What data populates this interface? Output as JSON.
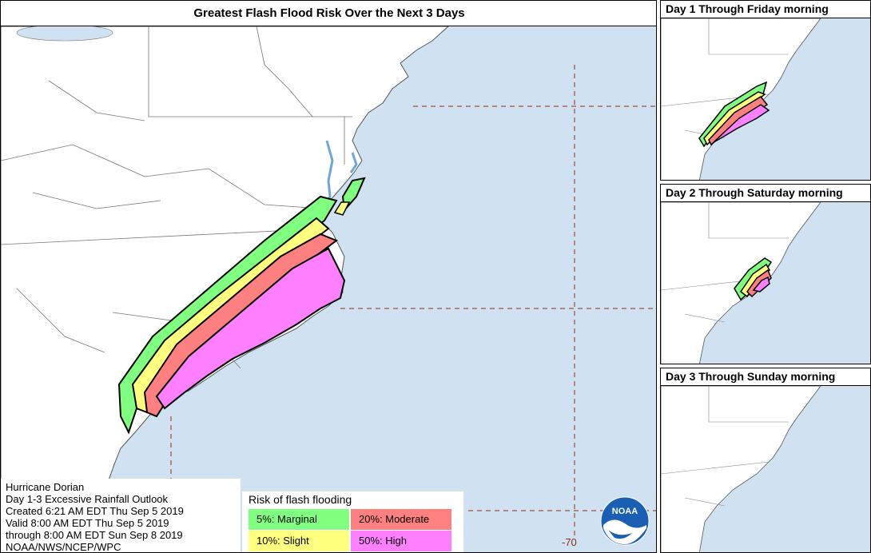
{
  "main": {
    "title": "Greatest Flash Flood Risk Over the Next 3 Days",
    "longitude_label": "-70"
  },
  "info": {
    "lines": [
      "Hurricane Dorian",
      "Day 1-3 Excessive Rainfall Outlook",
      "Created 6:21 AM EDT Thu Sep 5 2019",
      "Valid 8:00 AM EDT Thu Sep 5 2019",
      "through 8:00 AM EDT Sun Sep 8 2019",
      "NOAA/NWS/NCEP/WPC"
    ]
  },
  "legend": {
    "title": "Risk of flash flooding",
    "items": [
      {
        "label": "5%: Marginal",
        "color": "#80ff80"
      },
      {
        "label": "20%: Moderate",
        "color": "#ff8080"
      },
      {
        "label": "10%: Slight",
        "color": "#ffff80"
      },
      {
        "label": "50%: High",
        "color": "#ff80ff"
      }
    ]
  },
  "logo": {
    "text": "NOAA",
    "icon": "noaa-logo-icon"
  },
  "side_panels": [
    {
      "title": "Day 1 Through Friday morning"
    },
    {
      "title": "Day 2 Through Saturday morning"
    },
    {
      "title": "Day 3 Through Sunday morning"
    }
  ],
  "colors": {
    "ocean": "#d0e2f2",
    "land": "#ffffff",
    "marginal": "#80ff80",
    "slight": "#ffff80",
    "moderate": "#ff8080",
    "high": "#ff80ff",
    "gridline": "#8B2D10"
  }
}
